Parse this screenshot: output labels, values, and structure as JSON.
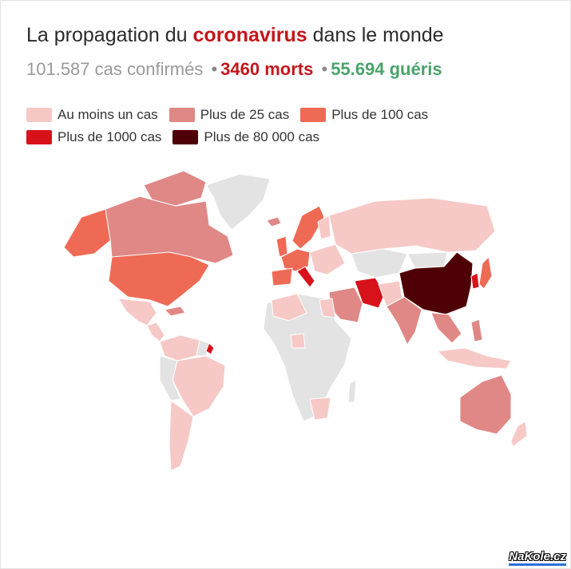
{
  "title": {
    "prefix": "La propagation du ",
    "highlight": "coronavirus",
    "suffix": " dans le monde"
  },
  "stats": {
    "confirmed": "101.587 cas confirmés",
    "separator": "•",
    "deaths": "3460 morts",
    "cured": "55.694 guéris"
  },
  "legend": [
    {
      "label": "Au moins un cas",
      "color": "#f6c9c6"
    },
    {
      "label": "Plus de 25 cas",
      "color": "#e08886"
    },
    {
      "label": "Plus de 100 cas",
      "color": "#ef6a55"
    },
    {
      "label": "Plus de 1000 cas",
      "color": "#d7121a"
    },
    {
      "label": "Plus de 80 000 cas",
      "color": "#4f0006"
    }
  ],
  "colors": {
    "no_data": "#e3e3e3",
    "border": "#ffffff"
  },
  "watermark": "NaKole.cz"
}
